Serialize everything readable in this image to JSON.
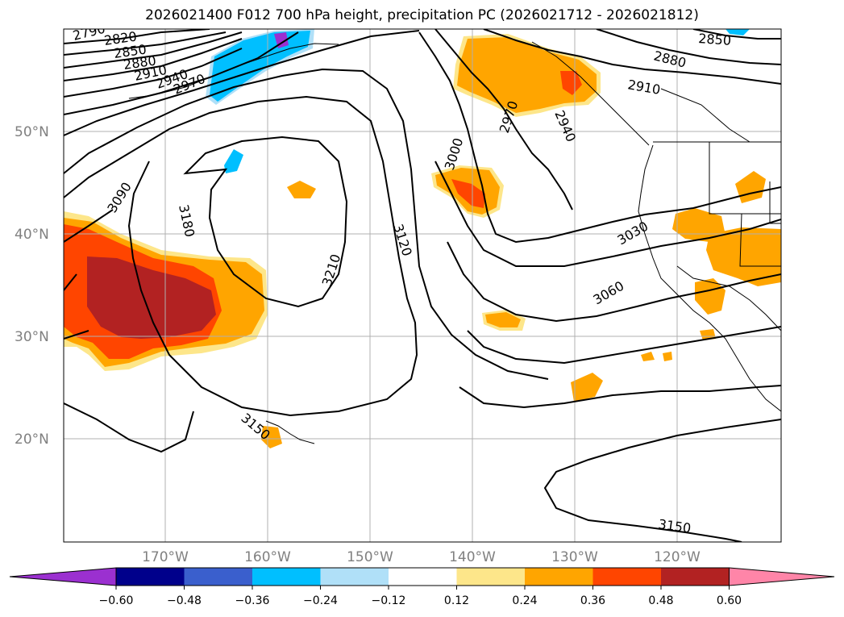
{
  "title": "2026021400 F012 700 hPa height, precipitation PC (2026021712 - 2026021812)",
  "latitude_labels": [
    "50°N",
    "40°N",
    "30°N",
    "20°N"
  ],
  "longitude_labels": [
    "170°W",
    "160°W",
    "150°W",
    "140°W",
    "130°W",
    "120°W"
  ],
  "contour_labels": [
    "2790",
    "2820",
    "2850",
    "2880",
    "2910",
    "2940",
    "2970",
    "3090",
    "3180",
    "3210",
    "3120",
    "3000",
    "2970",
    "2940",
    "2850",
    "2880",
    "2910",
    "3030",
    "3060",
    "3150",
    "3150"
  ],
  "colorbar": {
    "tick_labels": [
      "−0.60",
      "−0.48",
      "−0.36",
      "−0.24",
      "−0.12",
      "0.12",
      "0.24",
      "0.36",
      "0.48",
      "0.60"
    ],
    "colors": [
      "#9b30d0",
      "#00008b",
      "#3a5fcd",
      "#00bfff",
      "#b0e0f8",
      "#ffffff",
      "#fde68a",
      "#ffa500",
      "#ff4500",
      "#b22222",
      "#ff85a8"
    ]
  },
  "shading_colors": {
    "light_yellow": "#fde68a",
    "orange": "#ffa500",
    "red_orange": "#ff4500",
    "dark_red": "#b22222",
    "light_blue": "#b0e0f8",
    "sky_blue": "#00bfff",
    "purple": "#9b30d0"
  }
}
